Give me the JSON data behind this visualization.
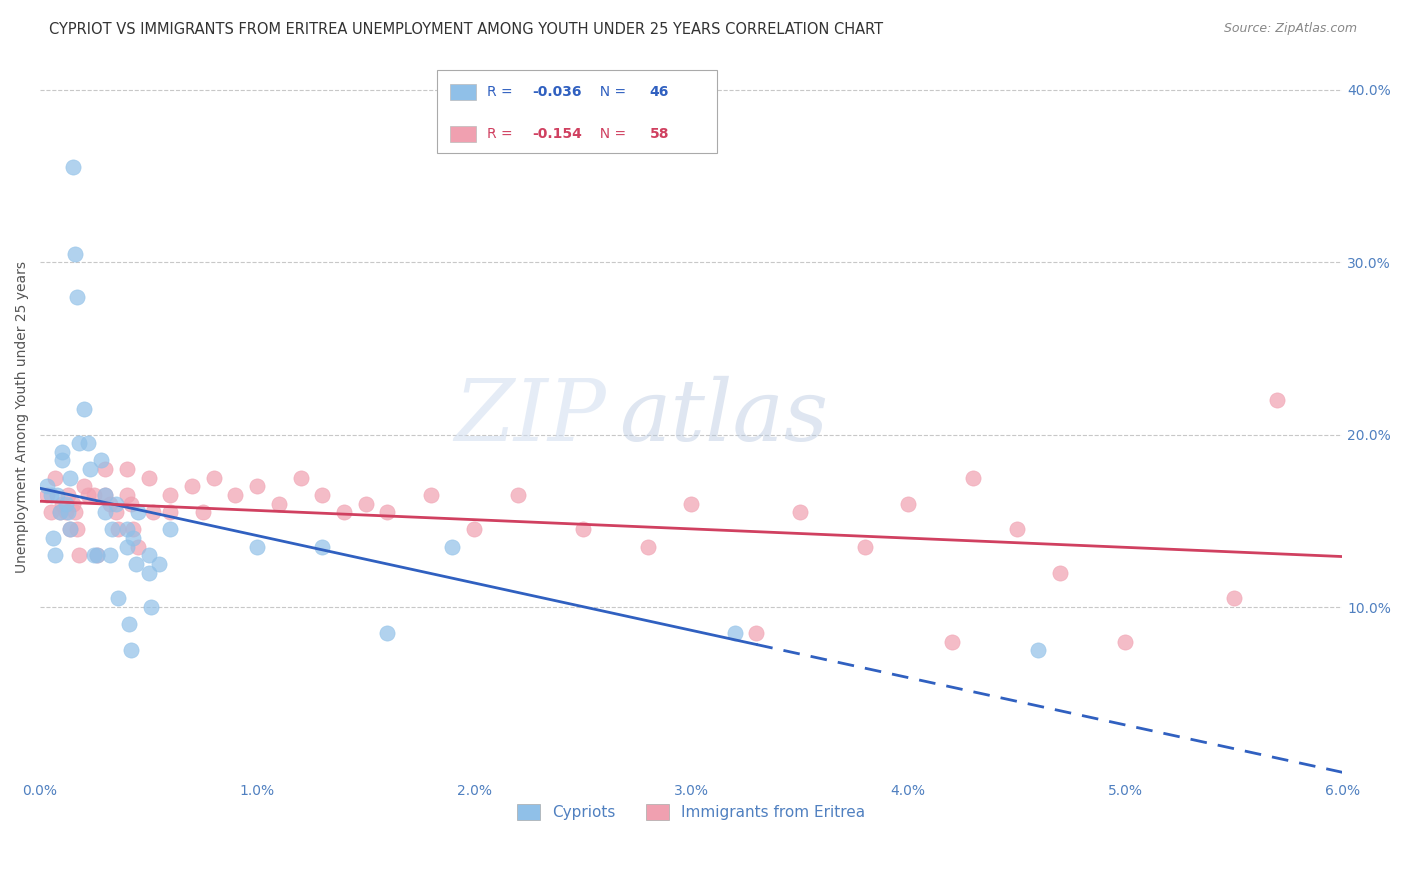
{
  "title": "CYPRIOT VS IMMIGRANTS FROM ERITREA UNEMPLOYMENT AMONG YOUTH UNDER 25 YEARS CORRELATION CHART",
  "source": "Source: ZipAtlas.com",
  "ylabel": "Unemployment Among Youth under 25 years",
  "x_min": 0.0,
  "x_max": 0.06,
  "y_min": 0.0,
  "y_max": 0.42,
  "y_ticks": [
    0.1,
    0.2,
    0.3,
    0.4
  ],
  "x_ticks": [
    0.0,
    0.01,
    0.02,
    0.03,
    0.04,
    0.05,
    0.06
  ],
  "x_tick_labels": [
    "0.0%",
    "1.0%",
    "2.0%",
    "3.0%",
    "4.0%",
    "5.0%",
    "6.0%"
  ],
  "y_tick_labels_right": [
    "10.0%",
    "20.0%",
    "30.0%",
    "40.0%"
  ],
  "legend_labels_bottom": [
    "Cypriots",
    "Immigrants from Eritrea"
  ],
  "cypriot_color": "#90c0e8",
  "eritrea_color": "#f0a0b0",
  "trend_cypriot_color": "#3060c0",
  "trend_eritrea_color": "#d04060",
  "background_color": "#ffffff",
  "grid_color": "#c8c8c8",
  "axis_color": "#5080c0",
  "r_cypriot": "-0.036",
  "n_cypriot": "46",
  "r_eritrea": "-0.154",
  "n_eritrea": "58",
  "watermark_zip": "ZIP",
  "watermark_atlas": "atlas",
  "title_fontsize": 10.5,
  "axis_label_fontsize": 10,
  "tick_fontsize": 10,
  "source_fontsize": 9,
  "cypriot_x": [
    0.0003,
    0.0005,
    0.0006,
    0.0007,
    0.0008,
    0.0009,
    0.001,
    0.001,
    0.0012,
    0.0013,
    0.0014,
    0.0014,
    0.0015,
    0.0016,
    0.0017,
    0.0018,
    0.002,
    0.0022,
    0.0023,
    0.0025,
    0.0026,
    0.0028,
    0.003,
    0.003,
    0.0032,
    0.0033,
    0.0035,
    0.0036,
    0.004,
    0.004,
    0.0041,
    0.0042,
    0.0043,
    0.0044,
    0.0045,
    0.005,
    0.005,
    0.0051,
    0.0055,
    0.006,
    0.01,
    0.013,
    0.016,
    0.019,
    0.032,
    0.046
  ],
  "cypriot_y": [
    0.17,
    0.165,
    0.14,
    0.13,
    0.165,
    0.155,
    0.185,
    0.19,
    0.16,
    0.155,
    0.145,
    0.175,
    0.355,
    0.305,
    0.28,
    0.195,
    0.215,
    0.195,
    0.18,
    0.13,
    0.13,
    0.185,
    0.155,
    0.165,
    0.13,
    0.145,
    0.16,
    0.105,
    0.145,
    0.135,
    0.09,
    0.075,
    0.14,
    0.125,
    0.155,
    0.12,
    0.13,
    0.1,
    0.125,
    0.145,
    0.135,
    0.135,
    0.085,
    0.135,
    0.085,
    0.075
  ],
  "eritrea_x": [
    0.0003,
    0.0005,
    0.0007,
    0.0009,
    0.001,
    0.0012,
    0.0013,
    0.0014,
    0.0015,
    0.0016,
    0.0017,
    0.0018,
    0.002,
    0.0022,
    0.0025,
    0.0026,
    0.003,
    0.003,
    0.0032,
    0.0035,
    0.0036,
    0.004,
    0.004,
    0.0042,
    0.0043,
    0.0045,
    0.005,
    0.0052,
    0.006,
    0.006,
    0.007,
    0.0075,
    0.008,
    0.009,
    0.01,
    0.011,
    0.012,
    0.013,
    0.014,
    0.015,
    0.016,
    0.018,
    0.02,
    0.022,
    0.025,
    0.028,
    0.03,
    0.033,
    0.035,
    0.038,
    0.04,
    0.042,
    0.043,
    0.045,
    0.047,
    0.05,
    0.055,
    0.057
  ],
  "eritrea_y": [
    0.165,
    0.155,
    0.175,
    0.155,
    0.16,
    0.155,
    0.165,
    0.145,
    0.16,
    0.155,
    0.145,
    0.13,
    0.17,
    0.165,
    0.165,
    0.13,
    0.18,
    0.165,
    0.16,
    0.155,
    0.145,
    0.18,
    0.165,
    0.16,
    0.145,
    0.135,
    0.175,
    0.155,
    0.165,
    0.155,
    0.17,
    0.155,
    0.175,
    0.165,
    0.17,
    0.16,
    0.175,
    0.165,
    0.155,
    0.16,
    0.155,
    0.165,
    0.145,
    0.165,
    0.145,
    0.135,
    0.16,
    0.085,
    0.155,
    0.135,
    0.16,
    0.08,
    0.175,
    0.145,
    0.12,
    0.08,
    0.105,
    0.22
  ]
}
